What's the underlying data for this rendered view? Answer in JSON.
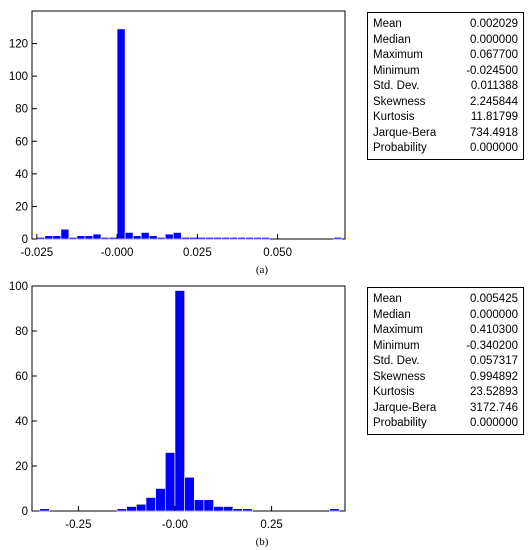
{
  "chart_data": [
    {
      "type": "bar",
      "caption": "(a)",
      "bin_width": 0.0025,
      "bins": [
        {
          "x": -0.02375,
          "count": 1
        },
        {
          "x": -0.02125,
          "count": 2
        },
        {
          "x": -0.01875,
          "count": 2
        },
        {
          "x": -0.01625,
          "count": 6
        },
        {
          "x": -0.01375,
          "count": 1
        },
        {
          "x": -0.01125,
          "count": 2
        },
        {
          "x": -0.00875,
          "count": 2
        },
        {
          "x": -0.00625,
          "count": 3
        },
        {
          "x": -0.00375,
          "count": 1
        },
        {
          "x": -0.00125,
          "count": 1
        },
        {
          "x": 0.00125,
          "count": 129
        },
        {
          "x": 0.00375,
          "count": 4
        },
        {
          "x": 0.00625,
          "count": 2
        },
        {
          "x": 0.00875,
          "count": 4
        },
        {
          "x": 0.01125,
          "count": 2
        },
        {
          "x": 0.01375,
          "count": 1
        },
        {
          "x": 0.01625,
          "count": 3
        },
        {
          "x": 0.01875,
          "count": 4
        },
        {
          "x": 0.02125,
          "count": 1
        },
        {
          "x": 0.02375,
          "count": 1
        },
        {
          "x": 0.02625,
          "count": 1
        },
        {
          "x": 0.02875,
          "count": 1
        },
        {
          "x": 0.03125,
          "count": 1
        },
        {
          "x": 0.03375,
          "count": 1
        },
        {
          "x": 0.03625,
          "count": 1
        },
        {
          "x": 0.03875,
          "count": 1
        },
        {
          "x": 0.04125,
          "count": 1
        },
        {
          "x": 0.04375,
          "count": 1
        },
        {
          "x": 0.04625,
          "count": 1
        },
        {
          "x": 0.06875,
          "count": 1
        }
      ],
      "xlim": [
        -0.0265,
        0.071
      ],
      "ylim": [
        0,
        140
      ],
      "xticks": [
        -0.025,
        0.0,
        0.025,
        0.05
      ],
      "xtick_labels": [
        "-0.025",
        "-0.000",
        "0.025",
        "0.050"
      ],
      "yticks": [
        0,
        20,
        40,
        60,
        80,
        100,
        120
      ],
      "ytick_labels": [
        "0",
        "20",
        "40",
        "60",
        "80",
        "100",
        "120"
      ],
      "color": "#0000ff",
      "stats": [
        {
          "label": "Mean",
          "value": "0.002029"
        },
        {
          "label": "Median",
          "value": "0.000000"
        },
        {
          "label": "Maximum",
          "value": "0.067700"
        },
        {
          "label": "Minimum",
          "value": "-0.024500"
        },
        {
          "label": "Std. Dev.",
          "value": "0.011388"
        },
        {
          "label": "Skewness",
          "value": "2.245844"
        },
        {
          "label": "Kurtosis",
          "value": "11.81799"
        },
        {
          "label": "Jarque-Bera",
          "value": "734.4918"
        },
        {
          "label": "Probability",
          "value": "0.000000"
        }
      ]
    },
    {
      "type": "bar",
      "caption": "(b)",
      "bin_width": 0.025,
      "bins": [
        {
          "x": -0.3375,
          "count": 1
        },
        {
          "x": -0.1375,
          "count": 1
        },
        {
          "x": -0.1125,
          "count": 2
        },
        {
          "x": -0.0875,
          "count": 3
        },
        {
          "x": -0.0625,
          "count": 6
        },
        {
          "x": -0.0375,
          "count": 10
        },
        {
          "x": -0.0125,
          "count": 26
        },
        {
          "x": 0.0125,
          "count": 98
        },
        {
          "x": 0.0375,
          "count": 15
        },
        {
          "x": 0.0625,
          "count": 5
        },
        {
          "x": 0.0875,
          "count": 5
        },
        {
          "x": 0.1125,
          "count": 2
        },
        {
          "x": 0.1375,
          "count": 2
        },
        {
          "x": 0.1625,
          "count": 1
        },
        {
          "x": 0.1875,
          "count": 1
        },
        {
          "x": 0.4125,
          "count": 1
        }
      ],
      "xlim": [
        -0.37,
        0.44
      ],
      "ylim": [
        0,
        100
      ],
      "xticks": [
        -0.25,
        0.0,
        0.25
      ],
      "xtick_labels": [
        "-0.25",
        "-0.00",
        "0.25"
      ],
      "yticks": [
        0,
        20,
        40,
        60,
        80,
        100
      ],
      "ytick_labels": [
        "0",
        "20",
        "40",
        "60",
        "80",
        "100"
      ],
      "color": "#0000ff",
      "stats": [
        {
          "label": "Mean",
          "value": "0.005425"
        },
        {
          "label": "Median",
          "value": "0.000000"
        },
        {
          "label": "Maximum",
          "value": "0.410300"
        },
        {
          "label": "Minimum",
          "value": "-0.340200"
        },
        {
          "label": "Std. Dev.",
          "value": "0.057317"
        },
        {
          "label": "Skewness",
          "value": "0.994892"
        },
        {
          "label": "Kurtosis",
          "value": "23.52893"
        },
        {
          "label": "Jarque-Bera",
          "value": "3172.746"
        },
        {
          "label": "Probability",
          "value": "0.000000"
        }
      ]
    }
  ]
}
